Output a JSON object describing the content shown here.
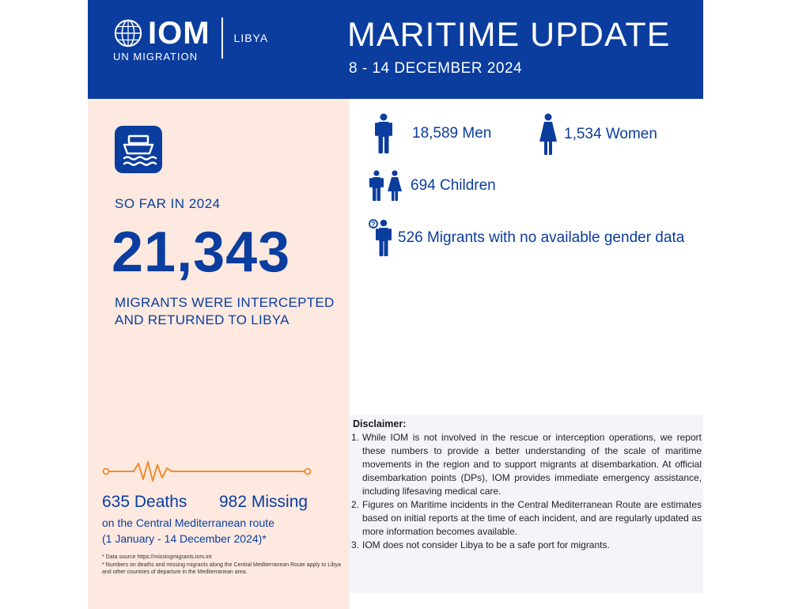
{
  "header": {
    "logo_text": "IOM",
    "logo_sub": "UN MIGRATION",
    "country": "LIBYA",
    "title": "MARITIME UPDATE",
    "date_range": "8 - 14 DECEMBER 2024"
  },
  "summary": {
    "so_far": "SO FAR IN 2024",
    "total": "21,343",
    "intercepted_line1": "MIGRANTS WERE INTERCEPTED",
    "intercepted_line2": "AND RETURNED TO LIBYA"
  },
  "casualties": {
    "deaths": "635 Deaths",
    "missing": "982 Missing",
    "route": "on the Central Mediterranean route",
    "period": "(1 January - 14 December 2024)*",
    "note1": "*   Data source https://missingmigrants.iom.int",
    "note2": "*   Numbers on deaths and missing migrants along the Central Mediterranean Route apply to Libya and other countries of departure in the Mediterranean area."
  },
  "breakdown": {
    "men": "18,589 Men",
    "women": "1,534 Women",
    "children": "694 Children",
    "unknown": "526 Migrants with no available gender data"
  },
  "disclaimer": {
    "title": "Disclaimer:",
    "items": [
      {
        "num": "1.",
        "text": "While IOM is not involved in the rescue or interception operations, we report these numbers to provide a better understanding of the scale of maritime movements in the region and to support migrants at disembarkation. At official disembarkation points (DPs), IOM provides immediate emergency assistance, including lifesaving medical care."
      },
      {
        "num": "2.",
        "text": "Figures on Maritime incidents in the Central Mediterranean Route are estimates based on initial reports at the time of each incident, and are regularly updated as more information becomes available."
      },
      {
        "num": "3.",
        "text": "IOM does not consider Libya to be a safe port for migrants."
      }
    ]
  },
  "colors": {
    "brand_blue": "#0b3d9f",
    "panel_peach": "#fde9e0",
    "pulse_orange": "#f08a2c",
    "disclaimer_bg": "#f4f5f9"
  },
  "icons": [
    "un-globe-icon",
    "boat-icon",
    "heartbeat-line-icon",
    "man-icon",
    "woman-icon",
    "children-icon",
    "unknown-person-icon"
  ]
}
